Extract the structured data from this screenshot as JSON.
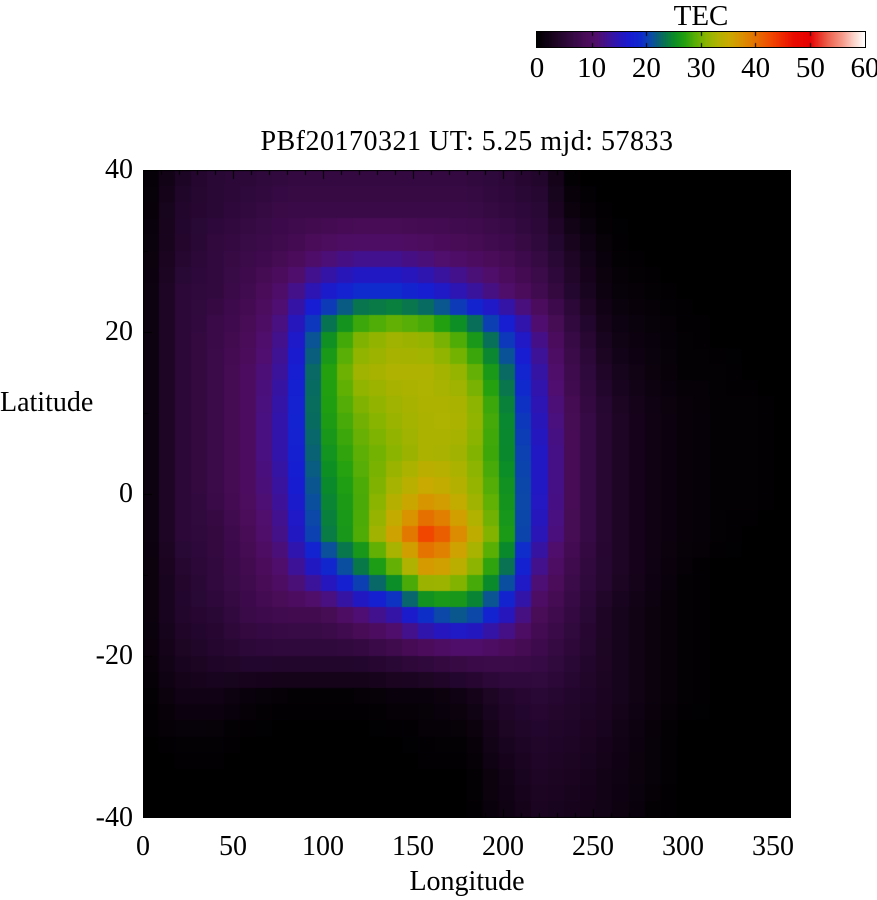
{
  "colorbar": {
    "title": "TEC",
    "tick_labels": [
      "0",
      "10",
      "20",
      "30",
      "40",
      "50",
      "60"
    ],
    "min": 0,
    "max": 60
  },
  "chart_data": {
    "type": "heatmap",
    "title": "PBf20170321  UT: 5.25  mjd: 57833",
    "xlabel": "Longitude",
    "ylabel": "Latitude",
    "value_label": "TEC",
    "x_range": [
      0,
      360
    ],
    "y_range": [
      -40,
      40
    ],
    "value_range": [
      0,
      60
    ],
    "x_tick_values": [
      0,
      50,
      100,
      150,
      200,
      250,
      300,
      350
    ],
    "y_tick_values": [
      40,
      20,
      0,
      -20,
      -40
    ],
    "grid_on": false,
    "legend_position": "top-right-colorbar",
    "lons": [
      0,
      20,
      40,
      60,
      80,
      100,
      120,
      140,
      160,
      180,
      200,
      220,
      240,
      260,
      280,
      300,
      320,
      340,
      360
    ],
    "lats": [
      40,
      35,
      30,
      25,
      20,
      15,
      10,
      5,
      0,
      -5,
      -10,
      -15,
      -20,
      -25,
      -30,
      -35,
      -40
    ],
    "values": [
      [
        0,
        3,
        5,
        5,
        6,
        6,
        6,
        6,
        6,
        6,
        5,
        4,
        0,
        0,
        0,
        0,
        0,
        0,
        0
      ],
      [
        0,
        4,
        5,
        6,
        7,
        7,
        7,
        7,
        7,
        7,
        6,
        5,
        1,
        0,
        0,
        0,
        0,
        0,
        0
      ],
      [
        0.5,
        4,
        6,
        7,
        8,
        10,
        11,
        11,
        10,
        9,
        8,
        6,
        3,
        0.5,
        0,
        0,
        0,
        0,
        0
      ],
      [
        0.5,
        5,
        6,
        8,
        11,
        16,
        19,
        19,
        17,
        14,
        11,
        8,
        4,
        1,
        0.5,
        0,
        0,
        0,
        0
      ],
      [
        0.5,
        5,
        7,
        9,
        13,
        24,
        30,
        32,
        31,
        27,
        20,
        12,
        6,
        2,
        1,
        0.5,
        0,
        0,
        0
      ],
      [
        0.5,
        5,
        7,
        10,
        14,
        26,
        32,
        33,
        33,
        31,
        24,
        14,
        7,
        3,
        1.5,
        0.5,
        0.5,
        0,
        0
      ],
      [
        0.5,
        5,
        7,
        10,
        15,
        26,
        30,
        32,
        33,
        33,
        26,
        15,
        8,
        4,
        2,
        1,
        0.5,
        0.5,
        0
      ],
      [
        0.5,
        5,
        7,
        10,
        15,
        25,
        29,
        31,
        33,
        32,
        26,
        16,
        8,
        4,
        2,
        1,
        0.5,
        0.5,
        0
      ],
      [
        0.5,
        5,
        7,
        10,
        14,
        24,
        28,
        33,
        36,
        33,
        27,
        16,
        8,
        4,
        2,
        1,
        0.5,
        0.5,
        0
      ],
      [
        0.5,
        5,
        6,
        9,
        13,
        23,
        28,
        36,
        44,
        36,
        28,
        15,
        8,
        4,
        2,
        1,
        0.5,
        0,
        0
      ],
      [
        0.5,
        4,
        6,
        8,
        11,
        16,
        22,
        28,
        36,
        32,
        24,
        12,
        7,
        4,
        2,
        0.5,
        0,
        0,
        0
      ],
      [
        0.5,
        4,
        5,
        7,
        8,
        8,
        11,
        14,
        20,
        22,
        16,
        9,
        6,
        3,
        1.5,
        0.5,
        0,
        0,
        0
      ],
      [
        0.5,
        3,
        4,
        5,
        5,
        5,
        5,
        6,
        7,
        8,
        8,
        7,
        5,
        3,
        1.5,
        0.5,
        0,
        0,
        0
      ],
      [
        0,
        2,
        2,
        1,
        0.5,
        0.5,
        0.5,
        1,
        1,
        2,
        4,
        5,
        4,
        3,
        1.5,
        0.5,
        0,
        0,
        0
      ],
      [
        0,
        0.5,
        0.5,
        0,
        0,
        0,
        0,
        0,
        0.5,
        0.5,
        3,
        4,
        3.5,
        2.5,
        1,
        0,
        0,
        0,
        0
      ],
      [
        0,
        0,
        0,
        0,
        0,
        0,
        0,
        0,
        0,
        0,
        2,
        3.5,
        3,
        2,
        1,
        0,
        0,
        0,
        0
      ],
      [
        0,
        0,
        0,
        0,
        0,
        0,
        0,
        0,
        0,
        0,
        1.5,
        3,
        2.5,
        2,
        0.5,
        0,
        0,
        0,
        0
      ]
    ],
    "colormap_stops": [
      [
        0,
        0,
        0,
        0
      ],
      [
        3,
        26,
        4,
        32
      ],
      [
        5,
        42,
        8,
        54
      ],
      [
        7,
        58,
        10,
        72
      ],
      [
        9,
        74,
        12,
        88
      ],
      [
        11,
        80,
        14,
        110
      ],
      [
        13,
        62,
        18,
        150
      ],
      [
        15,
        40,
        22,
        185
      ],
      [
        17,
        24,
        28,
        210
      ],
      [
        19,
        15,
        42,
        205
      ],
      [
        21,
        10,
        78,
        160
      ],
      [
        23,
        8,
        110,
        90
      ],
      [
        25,
        10,
        140,
        40
      ],
      [
        27,
        35,
        160,
        15
      ],
      [
        29,
        90,
        175,
        5
      ],
      [
        31,
        140,
        180,
        0
      ],
      [
        33,
        175,
        178,
        0
      ],
      [
        35,
        200,
        170,
        0
      ],
      [
        37,
        215,
        150,
        0
      ],
      [
        39,
        225,
        125,
        0
      ],
      [
        41,
        233,
        100,
        0
      ],
      [
        43,
        240,
        70,
        0
      ],
      [
        45,
        238,
        40,
        0
      ],
      [
        47,
        232,
        12,
        0
      ],
      [
        50,
        230,
        0,
        0
      ],
      [
        53,
        236,
        90,
        70
      ],
      [
        56,
        246,
        156,
        140
      ],
      [
        58,
        252,
        210,
        200
      ],
      [
        60,
        255,
        255,
        255
      ]
    ],
    "render_cell_deg": {
      "lon": 9,
      "lat": 2
    }
  }
}
